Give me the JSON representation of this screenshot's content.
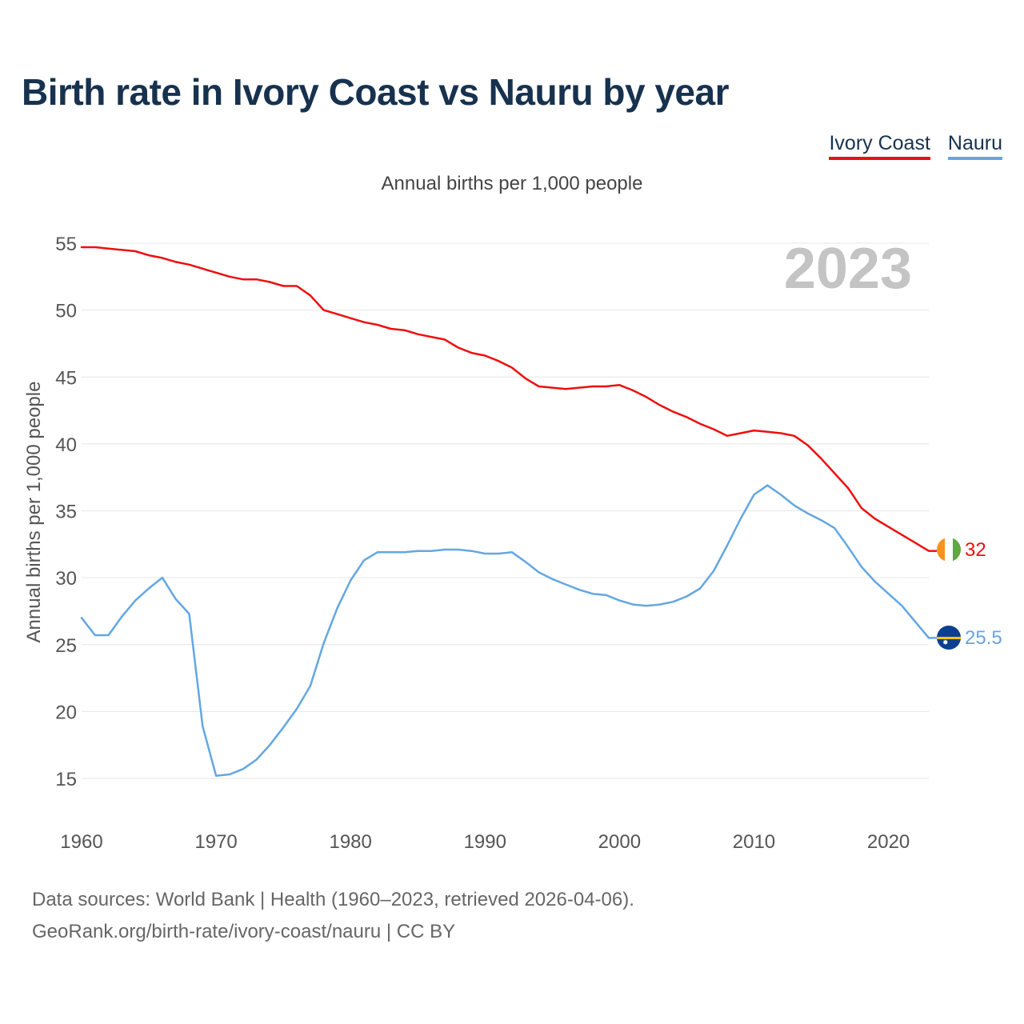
{
  "header": {
    "title": "Birth rate in Ivory Coast vs Nauru by year",
    "subtitle": "Annual births per 1,000 people"
  },
  "legend": {
    "items": [
      {
        "label": "Ivory Coast",
        "color": "#ee0f0f"
      },
      {
        "label": "Nauru",
        "color": "#63a7e3"
      }
    ]
  },
  "footer": {
    "line1": "Data sources: World Bank | Health (1960–2023, retrieved 2026-04-06).",
    "line2": "GeoRank.org/birth-rate/ivory-coast/nauru | CC BY"
  },
  "chart_data": {
    "type": "line",
    "title": "Birth rate in Ivory Coast vs Nauru by year",
    "ylabel": "Annual births per 1,000 people",
    "xlabel": "",
    "year_label": "2023",
    "xlim": [
      1960,
      2023
    ],
    "ylim": [
      12,
      56
    ],
    "x_ticks": [
      1960,
      1970,
      1980,
      1990,
      2000,
      2010,
      2020
    ],
    "y_ticks": [
      15,
      20,
      25,
      30,
      35,
      40,
      45,
      50,
      55
    ],
    "grid": true,
    "x": [
      1960,
      1961,
      1962,
      1963,
      1964,
      1965,
      1966,
      1967,
      1968,
      1969,
      1970,
      1971,
      1972,
      1973,
      1974,
      1975,
      1976,
      1977,
      1978,
      1979,
      1980,
      1981,
      1982,
      1983,
      1984,
      1985,
      1986,
      1987,
      1988,
      1989,
      1990,
      1991,
      1992,
      1993,
      1994,
      1995,
      1996,
      1997,
      1998,
      1999,
      2000,
      2001,
      2002,
      2003,
      2004,
      2005,
      2006,
      2007,
      2008,
      2009,
      2010,
      2011,
      2012,
      2013,
      2014,
      2015,
      2016,
      2017,
      2018,
      2019,
      2020,
      2021,
      2022,
      2023
    ],
    "series": [
      {
        "name": "Ivory Coast",
        "color": "#ee0f0f",
        "end_label": "32",
        "values": [
          54.7,
          54.7,
          54.6,
          54.5,
          54.4,
          54.1,
          53.9,
          53.6,
          53.4,
          53.1,
          52.8,
          52.5,
          52.3,
          52.3,
          52.1,
          51.8,
          51.8,
          51.1,
          50.0,
          49.7,
          49.4,
          49.1,
          48.9,
          48.6,
          48.5,
          48.2,
          48.0,
          47.8,
          47.2,
          46.8,
          46.6,
          46.2,
          45.7,
          44.9,
          44.3,
          44.2,
          44.1,
          44.2,
          44.3,
          44.3,
          44.4,
          44.0,
          43.5,
          42.9,
          42.4,
          42.0,
          41.5,
          41.1,
          40.6,
          40.8,
          41.0,
          40.9,
          40.8,
          40.6,
          39.9,
          38.9,
          37.8,
          36.7,
          35.2,
          34.4,
          33.8,
          33.2,
          32.6,
          32.0
        ]
      },
      {
        "name": "Nauru",
        "color": "#63a7e3",
        "end_label": "25.5",
        "values": [
          27.0,
          25.7,
          25.7,
          27.1,
          28.3,
          29.2,
          30.0,
          28.4,
          27.3,
          18.9,
          15.2,
          15.3,
          15.7,
          16.4,
          17.5,
          18.8,
          20.2,
          21.9,
          25.1,
          27.7,
          29.8,
          31.3,
          31.9,
          31.9,
          31.9,
          32.0,
          32.0,
          32.1,
          32.1,
          32.0,
          31.8,
          31.8,
          31.9,
          31.2,
          30.4,
          29.9,
          29.5,
          29.1,
          28.8,
          28.7,
          28.3,
          28.0,
          27.9,
          28.0,
          28.2,
          28.6,
          29.2,
          30.5,
          32.4,
          34.4,
          36.2,
          36.9,
          36.2,
          35.4,
          34.8,
          34.3,
          33.7,
          32.3,
          30.8,
          29.7,
          28.8,
          27.9,
          26.7,
          25.5
        ]
      }
    ]
  }
}
